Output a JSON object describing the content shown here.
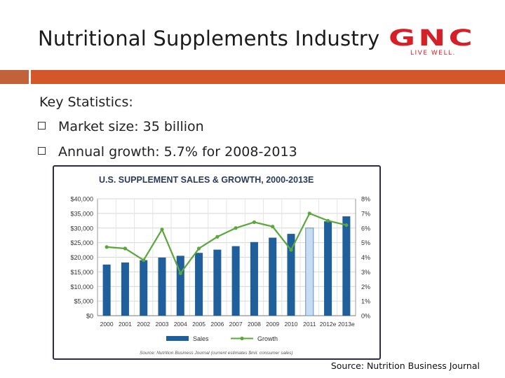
{
  "slide": {
    "title": "Nutritional Supplements Industry",
    "section_label": "Key Statistics:",
    "bullets": [
      "Market size: 35 billion",
      "Annual growth: 5.7% for 2008-2013"
    ],
    "source": "Source: Nutrition Business Journal"
  },
  "logo": {
    "main": "GNC",
    "tagline": "LIVE WELL."
  },
  "colors": {
    "accent": "#d4572a",
    "brand": "#d62027",
    "bar": "#1f5f9b",
    "bar_estimate": "#c7dcf0",
    "growth_line": "#5aa83c"
  },
  "chart_data": {
    "type": "bar",
    "title": "U.S. SUPPLEMENT SALES & GROWTH, 2000-2013E",
    "categories": [
      "2000",
      "2001",
      "2002",
      "2003",
      "2004",
      "2005",
      "2006",
      "2007",
      "2008",
      "2009",
      "2010",
      "2011",
      "2012e",
      "2013e"
    ],
    "series": [
      {
        "name": "Sales",
        "axis": "left",
        "values": [
          17500,
          18200,
          19000,
          19900,
          20500,
          21500,
          22600,
          23800,
          25200,
          26700,
          28000,
          30000,
          32300,
          34000
        ]
      },
      {
        "name": "Growth",
        "axis": "right",
        "kind": "line",
        "values": [
          4.7,
          4.6,
          3.8,
          5.9,
          2.9,
          4.6,
          5.4,
          6.0,
          6.4,
          6.1,
          4.5,
          7.0,
          6.5,
          6.2
        ]
      }
    ],
    "estimated_categories": [
      "2011"
    ],
    "y_left": {
      "ylim": [
        0,
        40000
      ],
      "ticks": [
        "$0",
        "$5,000",
        "$10,000",
        "$15,000",
        "$20,000",
        "$25,000",
        "$30,000",
        "$35,000",
        "$40,000"
      ]
    },
    "y_right": {
      "ylim": [
        0,
        8
      ],
      "ticks": [
        "0%",
        "1%",
        "2%",
        "3%",
        "4%",
        "5%",
        "6%",
        "7%",
        "8%"
      ]
    },
    "legend": [
      "Sales",
      "Growth"
    ],
    "footnote": "Source: Nutrition Business Journal (current estimates $mil. consumer sales)",
    "grid": true
  }
}
